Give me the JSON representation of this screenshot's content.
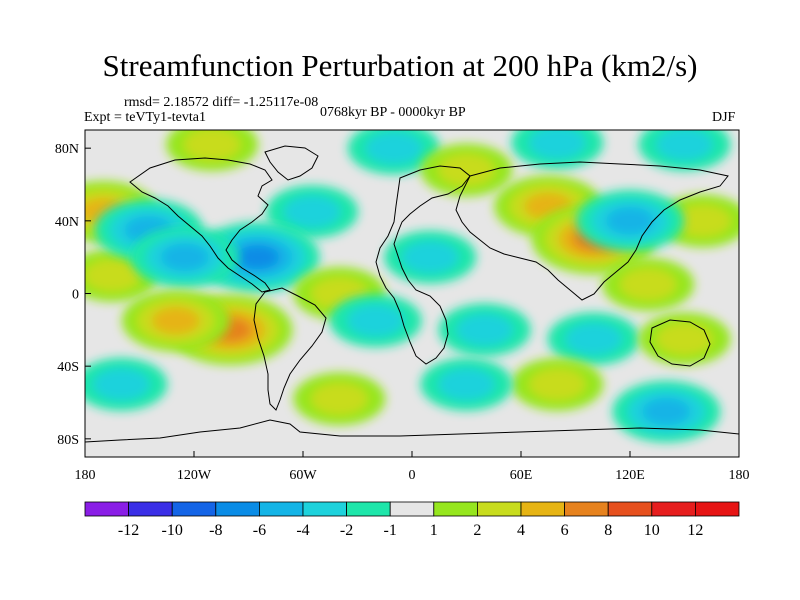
{
  "title": "Streamfunction Perturbation at 200 hPa (km2/s)",
  "stats": "rmsd= 2.18572 diff= -1.25117e-08",
  "experiment": "Expt = teVTy1-tevta1",
  "period": "0768kyr BP - 0000kyr BP",
  "season": "DJF",
  "map": {
    "projection": "cylindrical equidistant",
    "lon_range": [
      -180,
      180
    ],
    "lat_range": [
      -90,
      90
    ],
    "lon_ticks": [
      "180",
      "120W",
      "60W",
      "0",
      "60E",
      "120E",
      "180"
    ],
    "lat_ticks": [
      "80N",
      "40N",
      "0",
      "40S",
      "80S"
    ],
    "background_color": "#e6e6e6"
  },
  "colorbar": {
    "labels": [
      "-12",
      "-10",
      "-8",
      "-6",
      "-4",
      "-2",
      "-1",
      "1",
      "2",
      "4",
      "6",
      "8",
      "10",
      "12"
    ],
    "colors": [
      "#8a1ee6",
      "#3a2ee6",
      "#1464e6",
      "#0a8ce6",
      "#14b4e6",
      "#1ed2dc",
      "#1ee6aa",
      "#e6e6e6",
      "#96e61e",
      "#c8dc1e",
      "#e6b414",
      "#e6821e",
      "#e6501e",
      "#e61e1e",
      "#e61414"
    ]
  },
  "anomalies": [
    {
      "lon": -10,
      "lat": 80,
      "level": -2
    },
    {
      "lon": 80,
      "lat": 83,
      "level": -2
    },
    {
      "lon": 150,
      "lat": 82,
      "level": -2
    },
    {
      "lon": -110,
      "lat": 82,
      "level": 2
    },
    {
      "lon": 30,
      "lat": 68,
      "level": 2
    },
    {
      "lon": 75,
      "lat": 48,
      "level": 4
    },
    {
      "lon": 100,
      "lat": 30,
      "level": 6
    },
    {
      "lon": 160,
      "lat": 40,
      "level": 2
    },
    {
      "lon": -170,
      "lat": 45,
      "level": 4
    },
    {
      "lon": -55,
      "lat": 45,
      "level": -2
    },
    {
      "lon": 120,
      "lat": 40,
      "level": -4
    },
    {
      "lon": -165,
      "lat": 10,
      "level": 2
    },
    {
      "lon": -145,
      "lat": 35,
      "level": -4
    },
    {
      "lon": -85,
      "lat": 20,
      "level": -6
    },
    {
      "lon": -125,
      "lat": 20,
      "level": -4
    },
    {
      "lon": 10,
      "lat": 20,
      "level": -2
    },
    {
      "lon": -40,
      "lat": 0,
      "level": 2
    },
    {
      "lon": 130,
      "lat": 5,
      "level": 2
    },
    {
      "lon": -100,
      "lat": -20,
      "level": 6
    },
    {
      "lon": -130,
      "lat": -15,
      "level": 4
    },
    {
      "lon": -20,
      "lat": -15,
      "level": -2
    },
    {
      "lon": 40,
      "lat": -20,
      "level": -2
    },
    {
      "lon": 100,
      "lat": -25,
      "level": -2
    },
    {
      "lon": 150,
      "lat": -25,
      "level": 2
    },
    {
      "lon": 80,
      "lat": -50,
      "level": 2
    },
    {
      "lon": 30,
      "lat": -50,
      "level": -2
    },
    {
      "lon": -40,
      "lat": -58,
      "level": 2
    },
    {
      "lon": 140,
      "lat": -65,
      "level": -4
    },
    {
      "lon": -160,
      "lat": -50,
      "level": -2
    }
  ]
}
